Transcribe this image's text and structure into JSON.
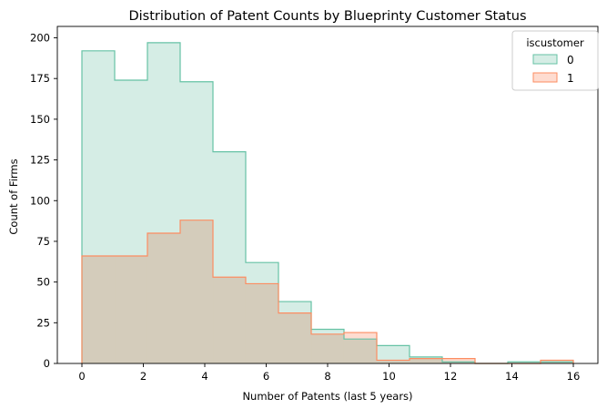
{
  "chart_data": {
    "type": "histogram",
    "title": "Distribution of Patent Counts by Blueprinty Customer Status",
    "xlabel": "Number of Patents (last 5 years)",
    "ylabel": "Count of Firms",
    "xlim": [
      -0.8,
      16.8
    ],
    "ylim": [
      0,
      207
    ],
    "xticks": [
      0,
      2,
      4,
      6,
      8,
      10,
      12,
      14,
      16
    ],
    "yticks": [
      0,
      25,
      50,
      75,
      100,
      125,
      150,
      175,
      200
    ],
    "bin_edges": [
      0,
      1.067,
      2.133,
      3.2,
      4.267,
      5.333,
      6.4,
      7.467,
      8.533,
      9.6,
      10.667,
      11.733,
      12.8,
      13.867,
      14.933,
      16
    ],
    "legend": {
      "title": "iscustomer",
      "placement": "top-right"
    },
    "series": [
      {
        "name": "0",
        "values": [
          192,
          174,
          197,
          173,
          130,
          62,
          38,
          21,
          15,
          11,
          4,
          1,
          0,
          1,
          1
        ],
        "edge_color": "#66c2a5",
        "fill_color": "#d5ede5"
      },
      {
        "name": "1",
        "values": [
          66,
          66,
          80,
          88,
          53,
          49,
          31,
          18,
          19,
          2,
          3,
          3,
          0,
          0,
          2
        ],
        "edge_color": "#fc8d62",
        "fill_color": "#fedcd0"
      }
    ]
  }
}
